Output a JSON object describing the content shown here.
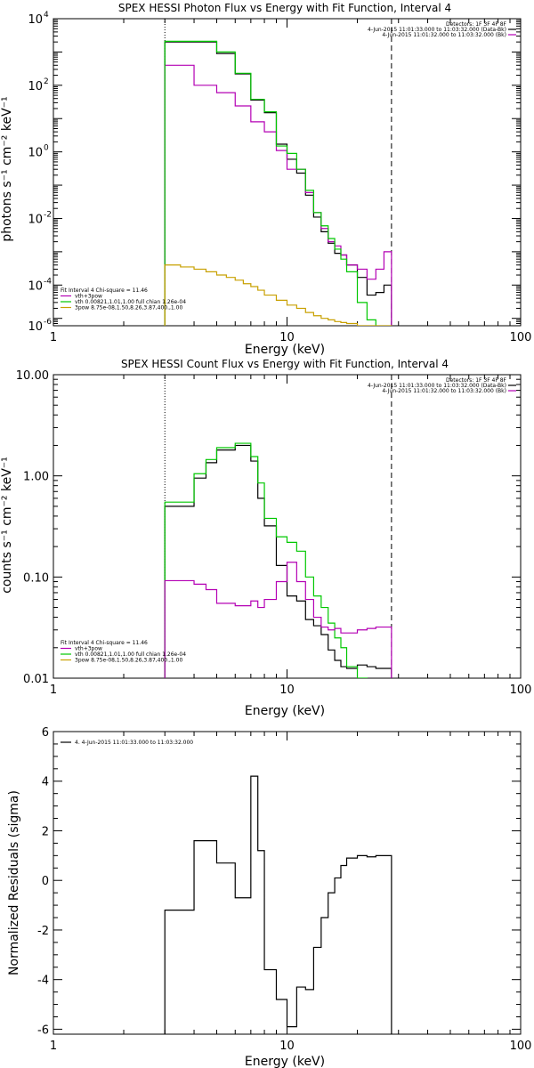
{
  "colors": {
    "data": "#000000",
    "total": "#b400b4",
    "vth": "#00c800",
    "pow": "#c8a000",
    "bk": "#000000"
  },
  "chart_data": [
    {
      "type": "line",
      "title": "SPEX HESSI Photon Flux vs Energy with Fit Function, Interval 4",
      "xlabel": "Energy (keV)",
      "ylabel": "photons s⁻¹ cm⁻² keV⁻¹",
      "xscale": "log",
      "yscale": "log",
      "xlim": [
        1,
        100
      ],
      "ylim": [
        6e-06,
        10000
      ],
      "xticks": [
        {
          "v": 1,
          "t": "1"
        },
        {
          "v": 10,
          "t": "10"
        },
        {
          "v": 100,
          "t": "100"
        }
      ],
      "yticks": [
        {
          "v": 10000,
          "b": "10",
          "e": "4"
        },
        {
          "v": 100,
          "b": "10",
          "e": "2"
        },
        {
          "v": 1,
          "b": "10",
          "e": "0"
        },
        {
          "v": 0.01,
          "b": "10",
          "e": "-2"
        },
        {
          "v": 0.0001,
          "b": "10",
          "e": "-4"
        },
        {
          "v": 1e-06,
          "b": "10",
          "e": "-6"
        }
      ],
      "vlines": [
        {
          "x": 3.0,
          "style": "dotted"
        },
        {
          "x": 28.0,
          "style": "dashed"
        }
      ],
      "legend_right": [
        {
          "text": "Detectors: 1F 3F 4F 8F",
          "color": ""
        },
        {
          "text": "4-Jun-2015 11:01:33.000 to 11:03:32.000 (Data-Bk)",
          "color": "data"
        },
        {
          "text": "4-Jun-2015 11:01:32.000 to 11:03:32.000 (Bk)",
          "color": "total"
        }
      ],
      "legend_left": [
        {
          "text": "Fit Interval 4   Chi-square = 11.46",
          "color": ""
        },
        {
          "text": "vth+3pow",
          "color": "total"
        },
        {
          "text": "vth 0.00821,1.01,1.00  full chian 1.26e-04",
          "color": "vth"
        },
        {
          "text": "3pow 8.75e-08,1.50,8.26,3.87,400.,1.00",
          "color": "pow"
        }
      ],
      "edges": [
        3.0,
        3.5,
        4.0,
        4.5,
        5.0,
        5.5,
        6.0,
        6.5,
        7.0,
        7.5,
        8.0,
        9.0,
        10.0,
        11.0,
        12.0,
        13.0,
        14.0,
        15.0,
        16.0,
        17.0,
        18.0,
        20.0,
        22.0,
        24.0,
        26.0,
        28.0
      ],
      "series": [
        {
          "color": "data",
          "values": [
            2000,
            2000,
            2000,
            2000,
            900,
            900,
            220,
            220,
            36,
            36,
            15,
            1.7,
            0.6,
            0.23,
            0.05,
            0.011,
            0.004,
            0.0018,
            0.0009,
            0.0008,
            0.0004,
            0.00017,
            5e-05,
            6e-05,
            0.0001
          ]
        },
        {
          "color": "total",
          "values": [
            400,
            400,
            100,
            100,
            60,
            60,
            24,
            24,
            8,
            8,
            4,
            1.1,
            0.3,
            0.3,
            0.06,
            0.015,
            0.005,
            0.002,
            0.0015,
            0.0008,
            0.0004,
            0.0003,
            0.00015,
            0.0003,
            0.001
          ]
        },
        {
          "color": "vth",
          "values": [
            2100,
            2100,
            2100,
            2100,
            1000,
            1000,
            230,
            230,
            38,
            38,
            16,
            1.5,
            0.9,
            0.3,
            0.07,
            0.015,
            0.006,
            0.0025,
            0.0012,
            0.0006,
            0.00025,
            3e-05,
            9e-06,
            5e-06,
            5e-06
          ]
        },
        {
          "color": "pow",
          "values": [
            0.0004,
            0.00035,
            0.0003,
            0.00025,
            0.0002,
            0.00017,
            0.00014,
            0.00011,
            9e-05,
            7e-05,
            5e-05,
            3.5e-05,
            2.5e-05,
            2e-05,
            1.5e-05,
            1.2e-05,
            1e-05,
            9e-06,
            8e-06,
            7.5e-06,
            7e-06,
            6e-06,
            6e-06,
            6e-06,
            6e-06
          ]
        }
      ]
    },
    {
      "type": "line",
      "title": "SPEX HESSI Count Flux vs Energy with Fit Function, Interval 4",
      "xlabel": "Energy (keV)",
      "ylabel": "counts s⁻¹ cm⁻² keV⁻¹",
      "xscale": "log",
      "yscale": "log",
      "xlim": [
        1,
        100
      ],
      "ylim": [
        0.01,
        10
      ],
      "xticks": [
        {
          "v": 1,
          "t": "1"
        },
        {
          "v": 10,
          "t": "10"
        },
        {
          "v": 100,
          "t": "100"
        }
      ],
      "yticks": [
        {
          "v": 10,
          "t": "10.00"
        },
        {
          "v": 1,
          "t": "1.00"
        },
        {
          "v": 0.1,
          "t": "0.10"
        },
        {
          "v": 0.01,
          "t": "0.01"
        }
      ],
      "vlines": [
        {
          "x": 3.0,
          "style": "dotted"
        },
        {
          "x": 28.0,
          "style": "dashed"
        }
      ],
      "legend_right": [
        {
          "text": "Detectors: 1F 3F 4F 8F",
          "color": ""
        },
        {
          "text": "4-Jun-2015 11:01:33.000 to 11:03:32.000 (Data-Bk)",
          "color": "data"
        },
        {
          "text": "4-Jun-2015 11:01:32.000 to 11:03:32.000 (Bk)",
          "color": "total"
        }
      ],
      "legend_left": [
        {
          "text": "Fit Interval 4   Chi-square = 11.46",
          "color": ""
        },
        {
          "text": "vth+3pow",
          "color": "total"
        },
        {
          "text": "vth 0.00821,1.01,1.00  full chian 1.26e-04",
          "color": "vth"
        },
        {
          "text": "3pow 8.75e-08,1.50,8.26,3.87,400.,1.00",
          "color": "pow"
        }
      ],
      "edges": [
        3.0,
        4.0,
        4.5,
        5.0,
        6.0,
        7.0,
        7.5,
        8.0,
        9.0,
        10.0,
        11.0,
        12.0,
        13.0,
        14.0,
        15.0,
        16.0,
        17.0,
        18.0,
        20.0,
        22.0,
        24.0,
        26.0,
        28.0
      ],
      "series": [
        {
          "color": "data",
          "values": [
            0.5,
            0.95,
            1.35,
            1.8,
            2.0,
            1.4,
            0.6,
            0.32,
            0.13,
            0.065,
            0.058,
            0.038,
            0.033,
            0.027,
            0.019,
            0.015,
            0.013,
            0.0125,
            0.0135,
            0.013,
            0.0125,
            0.0125
          ]
        },
        {
          "color": "vth",
          "values": [
            0.55,
            1.05,
            1.45,
            1.9,
            2.1,
            1.55,
            0.85,
            0.38,
            0.25,
            0.22,
            0.18,
            0.1,
            0.065,
            0.05,
            0.035,
            0.025,
            0.02,
            0.013,
            0.01,
            0.009,
            0.009,
            0.009
          ]
        },
        {
          "color": "total",
          "values": [
            0.092,
            0.085,
            0.075,
            0.055,
            0.052,
            0.058,
            0.05,
            0.06,
            0.09,
            0.14,
            0.09,
            0.06,
            0.04,
            0.032,
            0.03,
            0.031,
            0.028,
            0.028,
            0.03,
            0.031,
            0.032,
            0.032
          ]
        }
      ]
    },
    {
      "type": "line",
      "xlabel": "Energy (keV)",
      "ylabel": "Normalized Residuals (sigma)",
      "xscale": "log",
      "xlim": [
        1,
        100
      ],
      "ylim": [
        -6.2,
        6.0
      ],
      "xticks": [
        {
          "v": 1,
          "t": "1"
        },
        {
          "v": 10,
          "t": "10"
        },
        {
          "v": 100,
          "t": "100"
        }
      ],
      "yticks": [
        {
          "v": 6,
          "t": "6"
        },
        {
          "v": 4,
          "t": "4"
        },
        {
          "v": 2,
          "t": "2"
        },
        {
          "v": 0,
          "t": "0"
        },
        {
          "v": -2,
          "t": "-2"
        },
        {
          "v": -4,
          "t": "-4"
        },
        {
          "v": -6,
          "t": "-6"
        }
      ],
      "legend_left": [
        {
          "text": "4.  4-Jun-2015 11:01:33.000 to 11:03:32.000",
          "color": "data"
        }
      ],
      "edges": [
        3.0,
        4.0,
        5.0,
        6.0,
        7.0,
        7.5,
        8.0,
        9.0,
        10.0,
        11.0,
        12.0,
        13.0,
        14.0,
        15.0,
        16.0,
        17.0,
        18.0,
        20.0,
        22.0,
        24.0,
        26.0,
        28.0
      ],
      "series": [
        {
          "color": "data",
          "values": [
            -1.2,
            1.6,
            0.7,
            -0.7,
            4.2,
            1.2,
            -3.6,
            -4.8,
            -5.9,
            -4.3,
            -4.4,
            -2.7,
            -1.5,
            -0.5,
            0.1,
            0.6,
            0.9,
            1.0,
            0.95,
            1.0,
            1.0
          ]
        }
      ]
    }
  ]
}
